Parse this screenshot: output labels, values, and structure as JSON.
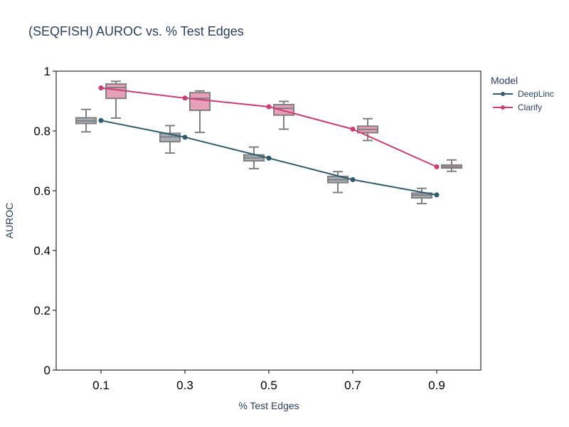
{
  "chart_data": {
    "type": "line",
    "title": "(SEQFISH) AUROC vs. % Test Edges",
    "xlabel": "% Test Edges",
    "ylabel": "AUROC",
    "x": [
      0.1,
      0.3,
      0.5,
      0.7,
      0.9
    ],
    "x_tick_labels": [
      "0.1",
      "0.3",
      "0.5",
      "0.7",
      "0.9"
    ],
    "ylim": [
      0,
      1
    ],
    "y_ticks": [
      0,
      0.2,
      0.4,
      0.6,
      0.8,
      1
    ],
    "y_tick_labels": [
      "0",
      "0.2",
      "0.4",
      "0.6",
      "0.8",
      "1"
    ],
    "grid": false,
    "legend": {
      "title": "Model",
      "placement": "top-right-outside"
    },
    "series": [
      {
        "name": "DeepLinc",
        "color": "#2f5b70",
        "box_fill": "#a6b0b8",
        "values": [
          0.835,
          0.779,
          0.709,
          0.637,
          0.586
        ],
        "boxes": [
          {
            "min": 0.797,
            "q1": 0.825,
            "median": 0.834,
            "q3": 0.844,
            "max": 0.872
          },
          {
            "min": 0.726,
            "q1": 0.764,
            "median": 0.78,
            "q3": 0.792,
            "max": 0.818
          },
          {
            "min": 0.674,
            "q1": 0.7,
            "median": 0.71,
            "q3": 0.72,
            "max": 0.746
          },
          {
            "min": 0.594,
            "q1": 0.627,
            "median": 0.637,
            "q3": 0.648,
            "max": 0.664
          },
          {
            "min": 0.557,
            "q1": 0.576,
            "median": 0.585,
            "q3": 0.592,
            "max": 0.608
          }
        ]
      },
      {
        "name": "Clarify",
        "color": "#cc3d74",
        "box_fill": "#e8a0b8",
        "values": [
          0.944,
          0.91,
          0.881,
          0.806,
          0.68
        ],
        "boxes": [
          {
            "min": 0.843,
            "q1": 0.909,
            "median": 0.945,
            "q3": 0.957,
            "max": 0.966
          },
          {
            "min": 0.795,
            "q1": 0.869,
            "median": 0.909,
            "q3": 0.928,
            "max": 0.934
          },
          {
            "min": 0.806,
            "q1": 0.853,
            "median": 0.876,
            "q3": 0.888,
            "max": 0.899
          },
          {
            "min": 0.768,
            "q1": 0.794,
            "median": 0.805,
            "q3": 0.816,
            "max": 0.841
          },
          {
            "min": 0.665,
            "q1": 0.676,
            "median": 0.68,
            "q3": 0.686,
            "max": 0.703
          }
        ]
      }
    ]
  }
}
